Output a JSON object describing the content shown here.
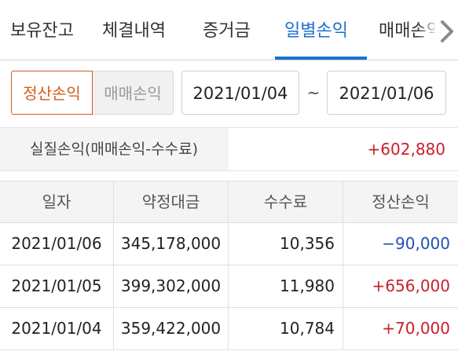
{
  "tabs": [
    {
      "label": "보유잔고",
      "active": false
    },
    {
      "label": "체결내역",
      "active": false
    },
    {
      "label": "증거금",
      "active": false
    },
    {
      "label": "일별손익",
      "active": true
    },
    {
      "label": "매매손익",
      "active": false
    }
  ],
  "filter": {
    "segment_on": "정산손익",
    "segment_off": "매매손익",
    "date_from": "2021/01/04",
    "date_separator": "~",
    "date_to": "2021/01/06"
  },
  "summary": {
    "label": "실질손익(매매손익-수수료)",
    "value": "+602,880"
  },
  "table": {
    "headers": [
      "일자",
      "약정대금",
      "수수료",
      "정산손익"
    ],
    "rows": [
      {
        "date": "2021/01/06",
        "amount": "345,178,000",
        "fee": "10,356",
        "pnl": "−90,000",
        "sign": "neg"
      },
      {
        "date": "2021/01/05",
        "amount": "399,302,000",
        "fee": "11,980",
        "pnl": "+656,000",
        "sign": "pos"
      },
      {
        "date": "2021/01/04",
        "amount": "359,422,000",
        "fee": "10,784",
        "pnl": "+70,000",
        "sign": "pos"
      }
    ]
  },
  "colors": {
    "accent": "#1c6fd1",
    "segment_active": "#d65a1c",
    "positive": "#c8202a",
    "negative": "#1f52b4"
  },
  "icons": {
    "tab_scroll": "chevron-right-icon"
  }
}
